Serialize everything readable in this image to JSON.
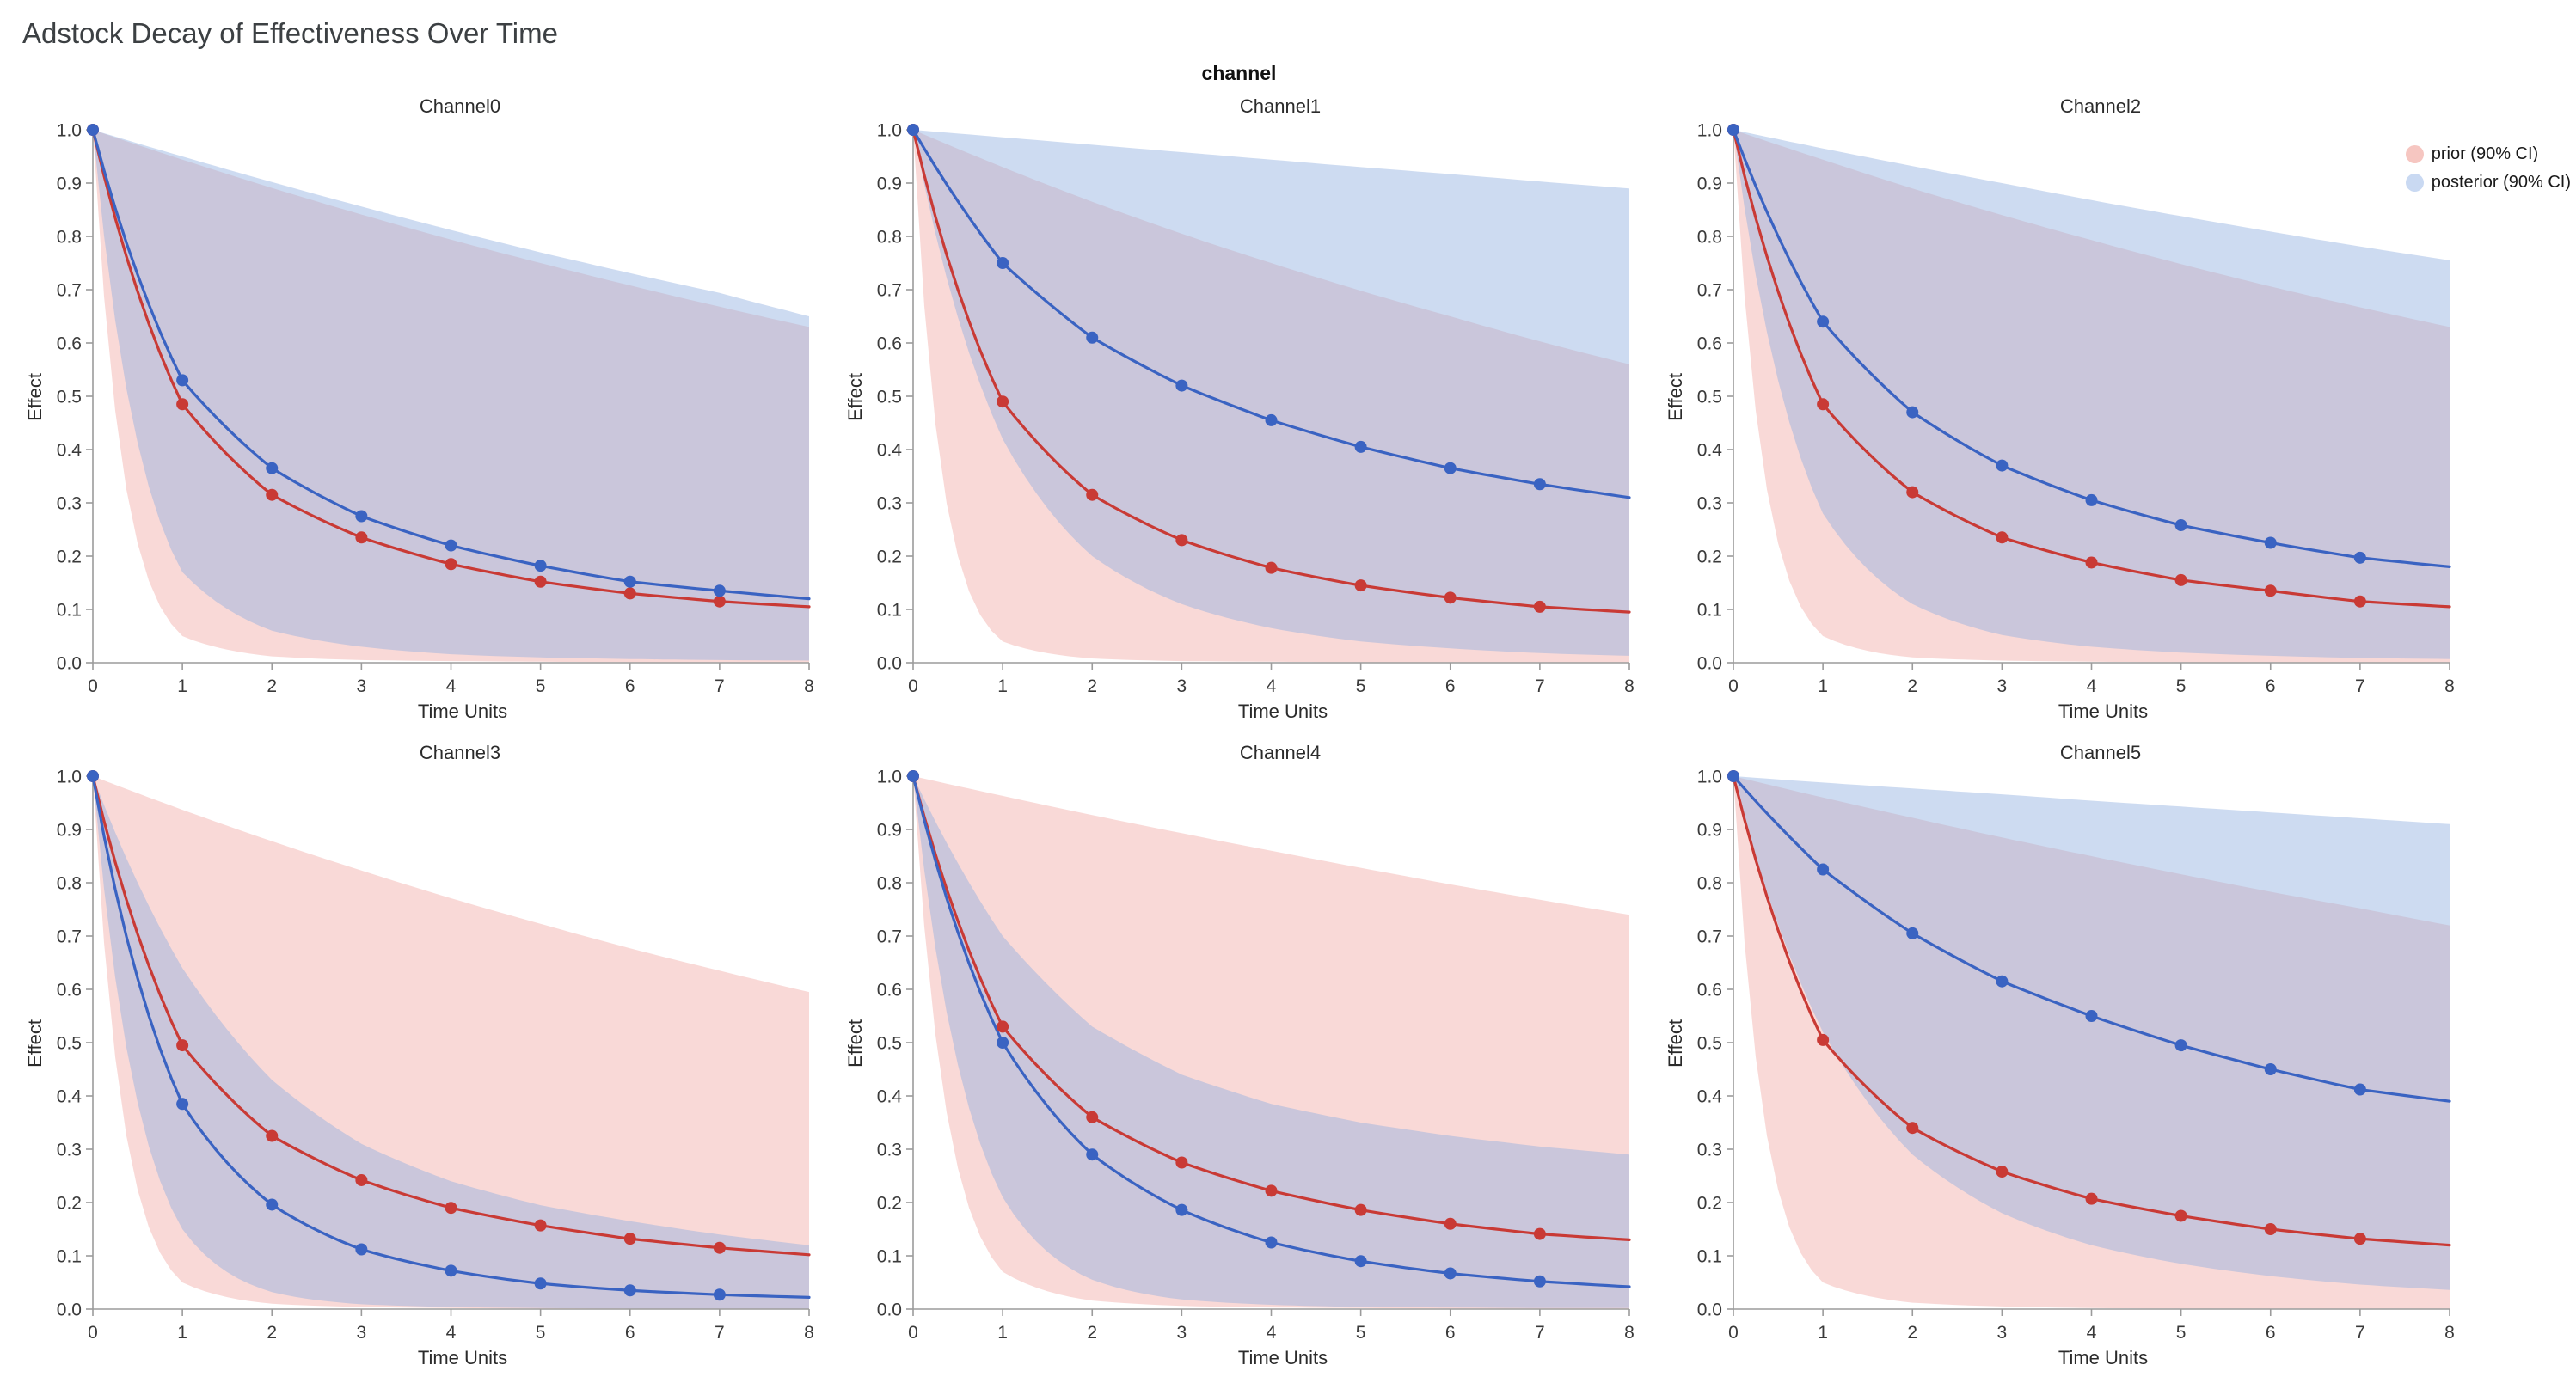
{
  "page": {
    "title": "Adstock Decay of Effectiveness Over Time",
    "figure_label": "channel"
  },
  "legend": {
    "items": [
      {
        "label": "prior (90% CI)",
        "swatch": "legend_prior"
      },
      {
        "label": "posterior (90% CI)",
        "swatch": "legend_posterior"
      }
    ],
    "position": "outside-top-right"
  },
  "chart_data": {
    "type": "line",
    "title": "Adstock Decay of Effectiveness Over Time",
    "subplots_layout": "2 rows x 3 columns",
    "xlabel": "Time Units",
    "ylabel": "Effect",
    "xlim": [
      0,
      8
    ],
    "ylim": [
      0.0,
      1.0
    ],
    "xticks": [
      0,
      1,
      2,
      3,
      4,
      5,
      6,
      7,
      8
    ],
    "yticks": [
      0.0,
      0.1,
      0.2,
      0.3,
      0.4,
      0.5,
      0.6,
      0.7,
      0.8,
      0.9,
      1.0
    ],
    "grid": false,
    "x": [
      0,
      1,
      2,
      3,
      4,
      5,
      6,
      7,
      8
    ],
    "marker_x": [
      0,
      1,
      2,
      3,
      4,
      5,
      6,
      7
    ],
    "colors": {
      "prior_line": "#c93a35",
      "prior_fill": "#ee9189",
      "prior_fill_opacity": 0.34,
      "posterior_line": "#3a63c2",
      "posterior_fill": "#90b0e0",
      "posterior_fill_opacity": 0.45,
      "legend_prior": "#f6c6c1",
      "legend_posterior": "#c9d9f2",
      "axis": "#9b9b9b"
    },
    "channels": [
      {
        "label": "Channel0",
        "prior": {
          "mean": [
            1.0,
            0.485,
            0.315,
            0.235,
            0.185,
            0.152,
            0.13,
            0.115,
            0.105
          ],
          "lower": [
            1.0,
            0.05,
            0.012,
            0.005,
            0.003,
            0.002,
            0.001,
            0.001,
            0.001
          ],
          "upper": [
            1.0,
            0.944,
            0.891,
            0.841,
            0.794,
            0.75,
            0.708,
            0.668,
            0.63
          ]
        },
        "posterior": {
          "mean": [
            1.0,
            0.53,
            0.365,
            0.275,
            0.22,
            0.182,
            0.152,
            0.135,
            0.12
          ],
          "lower": [
            1.0,
            0.17,
            0.06,
            0.03,
            0.016,
            0.01,
            0.007,
            0.005,
            0.004
          ],
          "upper": [
            1.0,
            0.95,
            0.902,
            0.856,
            0.812,
            0.77,
            0.731,
            0.694,
            0.65
          ]
        }
      },
      {
        "label": "Channel1",
        "prior": {
          "mean": [
            1.0,
            0.49,
            0.315,
            0.23,
            0.178,
            0.145,
            0.122,
            0.105,
            0.095
          ],
          "lower": [
            1.0,
            0.04,
            0.008,
            0.003,
            0.002,
            0.001,
            0.001,
            0.001,
            0.001
          ],
          "upper": [
            1.0,
            0.93,
            0.865,
            0.805,
            0.75,
            0.698,
            0.65,
            0.603,
            0.56
          ]
        },
        "posterior": {
          "mean": [
            1.0,
            0.75,
            0.61,
            0.52,
            0.455,
            0.405,
            0.365,
            0.335,
            0.31
          ],
          "lower": [
            1.0,
            0.42,
            0.2,
            0.11,
            0.065,
            0.04,
            0.027,
            0.018,
            0.013
          ],
          "upper": [
            1.0,
            0.986,
            0.972,
            0.958,
            0.944,
            0.93,
            0.917,
            0.903,
            0.89
          ]
        }
      },
      {
        "label": "Channel2",
        "prior": {
          "mean": [
            1.0,
            0.485,
            0.32,
            0.235,
            0.188,
            0.155,
            0.135,
            0.115,
            0.105
          ],
          "lower": [
            1.0,
            0.05,
            0.01,
            0.004,
            0.002,
            0.001,
            0.001,
            0.001,
            0.001
          ],
          "upper": [
            1.0,
            0.944,
            0.89,
            0.84,
            0.793,
            0.748,
            0.706,
            0.667,
            0.63
          ]
        },
        "posterior": {
          "mean": [
            1.0,
            0.64,
            0.47,
            0.37,
            0.305,
            0.258,
            0.225,
            0.197,
            0.18
          ],
          "lower": [
            1.0,
            0.28,
            0.11,
            0.052,
            0.03,
            0.019,
            0.013,
            0.009,
            0.007
          ],
          "upper": [
            1.0,
            0.965,
            0.932,
            0.9,
            0.868,
            0.838,
            0.809,
            0.781,
            0.755
          ]
        }
      },
      {
        "label": "Channel3",
        "prior": {
          "mean": [
            1.0,
            0.495,
            0.325,
            0.242,
            0.19,
            0.157,
            0.132,
            0.115,
            0.102
          ],
          "lower": [
            1.0,
            0.05,
            0.01,
            0.004,
            0.002,
            0.001,
            0.001,
            0.001,
            0.001
          ],
          "upper": [
            1.0,
            0.937,
            0.878,
            0.823,
            0.771,
            0.723,
            0.677,
            0.635,
            0.595
          ]
        },
        "posterior": {
          "mean": [
            1.0,
            0.385,
            0.196,
            0.112,
            0.072,
            0.048,
            0.035,
            0.027,
            0.022
          ],
          "lower": [
            1.0,
            0.15,
            0.032,
            0.009,
            0.004,
            0.002,
            0.001,
            0.001,
            0.001
          ],
          "upper": [
            1.0,
            0.64,
            0.43,
            0.31,
            0.24,
            0.195,
            0.165,
            0.14,
            0.12
          ]
        }
      },
      {
        "label": "Channel4",
        "prior": {
          "mean": [
            1.0,
            0.53,
            0.36,
            0.275,
            0.222,
            0.186,
            0.16,
            0.141,
            0.13
          ],
          "lower": [
            1.0,
            0.07,
            0.016,
            0.006,
            0.003,
            0.002,
            0.001,
            0.001,
            0.001
          ],
          "upper": [
            1.0,
            0.963,
            0.927,
            0.893,
            0.86,
            0.828,
            0.797,
            0.768,
            0.74
          ]
        },
        "posterior": {
          "mean": [
            1.0,
            0.5,
            0.29,
            0.186,
            0.125,
            0.09,
            0.067,
            0.052,
            0.042
          ],
          "lower": [
            1.0,
            0.21,
            0.055,
            0.018,
            0.008,
            0.004,
            0.003,
            0.002,
            0.002
          ],
          "upper": [
            1.0,
            0.7,
            0.53,
            0.44,
            0.385,
            0.35,
            0.325,
            0.305,
            0.29
          ]
        }
      },
      {
        "label": "Channel5",
        "prior": {
          "mean": [
            1.0,
            0.505,
            0.34,
            0.258,
            0.207,
            0.175,
            0.15,
            0.132,
            0.12
          ],
          "lower": [
            1.0,
            0.05,
            0.012,
            0.005,
            0.002,
            0.001,
            0.001,
            0.001,
            0.001
          ],
          "upper": [
            1.0,
            0.96,
            0.922,
            0.885,
            0.85,
            0.816,
            0.783,
            0.752,
            0.72
          ]
        },
        "posterior": {
          "mean": [
            1.0,
            0.825,
            0.705,
            0.615,
            0.55,
            0.495,
            0.45,
            0.412,
            0.39
          ],
          "lower": [
            1.0,
            0.52,
            0.29,
            0.18,
            0.12,
            0.085,
            0.062,
            0.046,
            0.036
          ],
          "upper": [
            1.0,
            0.988,
            0.977,
            0.966,
            0.954,
            0.943,
            0.932,
            0.921,
            0.91
          ]
        }
      }
    ]
  }
}
